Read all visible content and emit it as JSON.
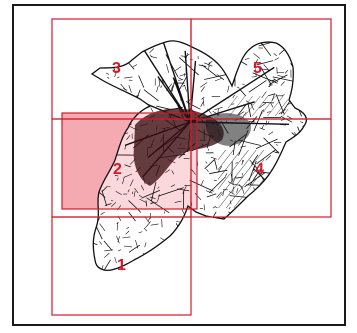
{
  "map": {
    "accent_color": "#d11a2a",
    "highlight_fill": "#f39aa3",
    "parcel_stroke": "#111111",
    "zones": [
      {
        "id": "1",
        "label": "1",
        "highlighted": false
      },
      {
        "id": "2",
        "label": "2",
        "highlighted": true
      },
      {
        "id": "3",
        "label": "3",
        "highlighted": false
      },
      {
        "id": "4",
        "label": "4",
        "highlighted": false
      },
      {
        "id": "5",
        "label": "5",
        "highlighted": false
      }
    ]
  }
}
